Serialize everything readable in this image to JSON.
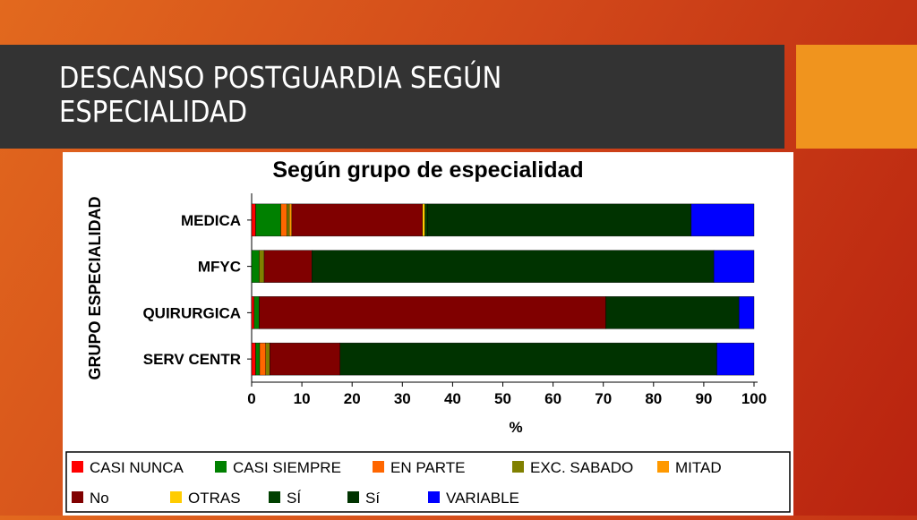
{
  "slide": {
    "title": "DESCANSO POSTGUARDIA SEGÚN\nESPECIALIDAD",
    "accent_color": "#f0941e",
    "bar_color": "#333333"
  },
  "chart_data": {
    "type": "bar",
    "orientation": "horizontal",
    "stacked": true,
    "title": "Según grupo de especialidad",
    "xlabel": "%",
    "ylabel": "GRUPO ESPECIALIDAD",
    "xlim": [
      0,
      100
    ],
    "xticks": [
      "0",
      "10",
      "20",
      "30",
      "40",
      "50",
      "60",
      "70",
      "80",
      "90",
      "100"
    ],
    "grid": false,
    "legend_position": "bottom",
    "categories": [
      "MEDICA",
      "MFYC",
      "QUIRURGICA",
      "SERV CENTR"
    ],
    "series": [
      {
        "name": "CASI NUNCA",
        "color": "#ff0000",
        "values": [
          0.8,
          0,
          0.5,
          0.8
        ]
      },
      {
        "name": "CASI SIEMPRE",
        "color": "#008000",
        "values": [
          5.0,
          1.5,
          1.0,
          0.8
        ]
      },
      {
        "name": "EN PARTE",
        "color": "#ff6600",
        "values": [
          1.2,
          0,
          0,
          1.2
        ]
      },
      {
        "name": "EXC. SABADO",
        "color": "#808000",
        "values": [
          0.5,
          1.0,
          0,
          0.8
        ]
      },
      {
        "name": "MITAD",
        "color": "#ff9900",
        "values": [
          0.5,
          0,
          0,
          0
        ]
      },
      {
        "name": "No",
        "color": "#800000",
        "values": [
          26.0,
          9.5,
          69.0,
          14.0
        ]
      },
      {
        "name": "OTRAS",
        "color": "#ffcc00",
        "values": [
          0.5,
          0,
          0,
          0
        ]
      },
      {
        "name": "SÍ",
        "color": "#004000",
        "values": [
          0.5,
          0,
          0,
          0
        ]
      },
      {
        "name": "Sí",
        "color": "#003300",
        "values": [
          52.5,
          80.0,
          26.5,
          75.0
        ]
      },
      {
        "name": "VARIABLE",
        "color": "#0000ff",
        "values": [
          12.5,
          8.0,
          3.0,
          7.4
        ]
      }
    ]
  }
}
